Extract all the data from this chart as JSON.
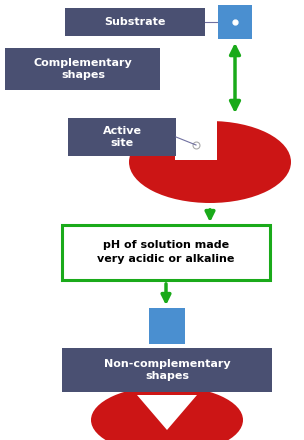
{
  "bg_color": "#ffffff",
  "dark_blue": "#4a5072",
  "blue_sq": "#4a8fd0",
  "red_enzyme": "#cc1515",
  "green_arrow": "#1aaa1a",
  "ph_box_color": "#ffffff",
  "ph_box_edge": "#1aaa1a",
  "label_substrate": "Substrate",
  "label_complementary": "Complementary\nshapes",
  "label_active": "Active\nsite",
  "label_ph": "pH of solution made\nvery acidic or alkaline",
  "label_non_comp": "Non-complementary\nshapes"
}
